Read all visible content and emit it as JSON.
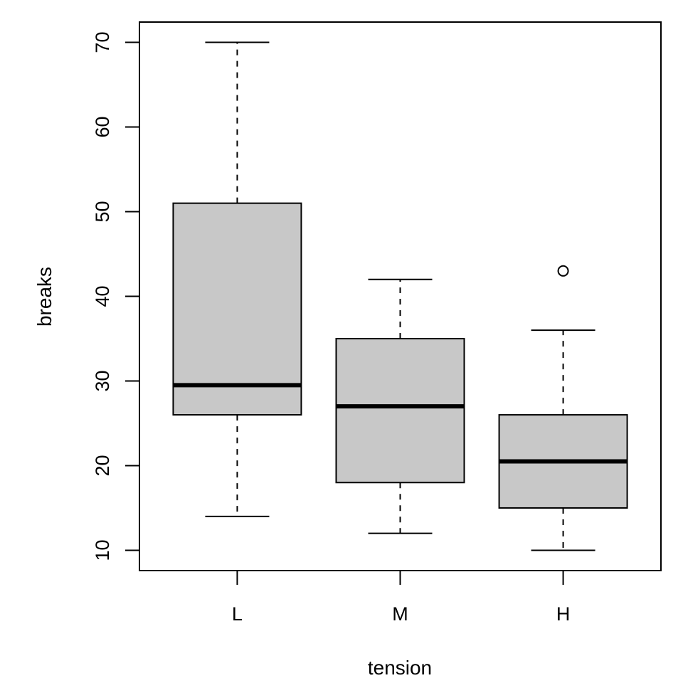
{
  "chart_data": {
    "type": "boxplot",
    "xlabel": "tension",
    "ylabel": "breaks",
    "categories": [
      "L",
      "M",
      "H"
    ],
    "ylim": [
      7.6,
      72.4
    ],
    "y_ticks": [
      10,
      20,
      30,
      40,
      50,
      60,
      70
    ],
    "boxes": [
      {
        "category": "L",
        "whisker_low": 14,
        "q1": 26,
        "median": 29.5,
        "q3": 51,
        "whisker_high": 70,
        "outliers": []
      },
      {
        "category": "M",
        "whisker_low": 12,
        "q1": 18,
        "median": 27,
        "q3": 35,
        "whisker_high": 42,
        "outliers": []
      },
      {
        "category": "H",
        "whisker_low": 10,
        "q1": 15,
        "median": 20.5,
        "q3": 26,
        "whisker_high": 36,
        "outliers": [
          43
        ]
      }
    ],
    "box_fill": "#c8c8c8",
    "line_color": "#000000",
    "grid": false,
    "legend": "none"
  }
}
